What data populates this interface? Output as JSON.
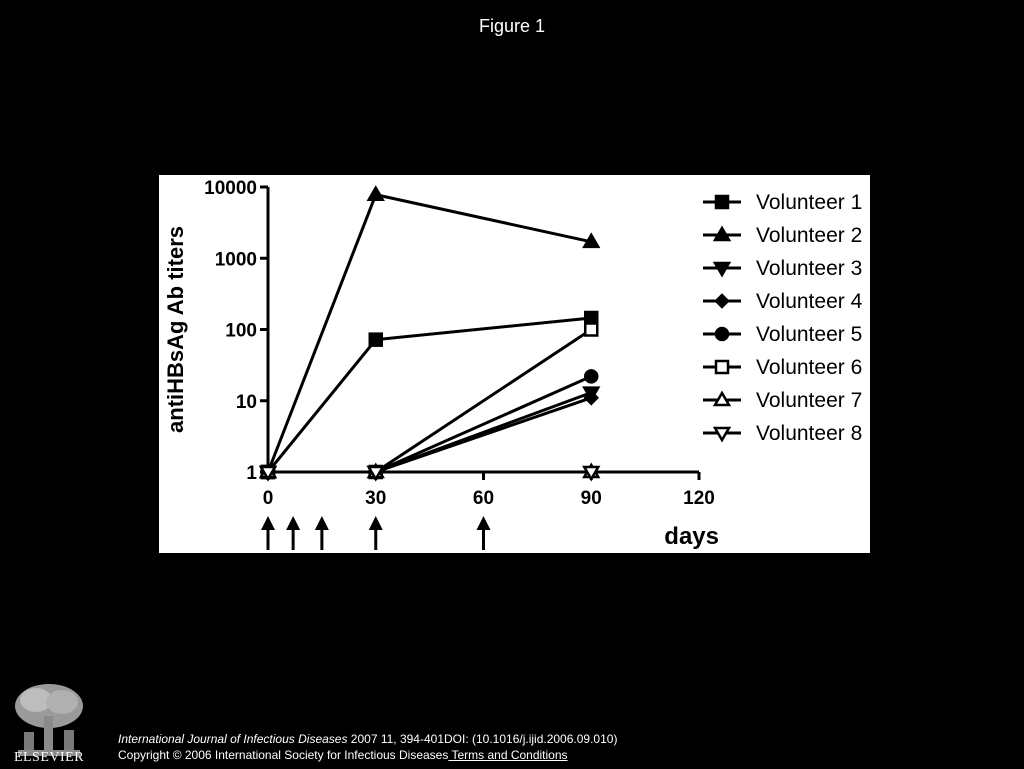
{
  "page": {
    "title": "Figure 1"
  },
  "colors": {
    "background": "#000000",
    "plot_bg": "#ffffff",
    "ink": "#000000"
  },
  "chart_data": {
    "type": "line",
    "title": "",
    "xlabel": "days",
    "ylabel": "antiHBsAg Ab titers",
    "y_scale": "log",
    "xlim": [
      0,
      120
    ],
    "ylim": [
      1,
      10000
    ],
    "x_ticks": [
      "0",
      "30",
      "60",
      "90",
      "120"
    ],
    "y_ticks": [
      "1",
      "10",
      "100",
      "1000",
      "10000"
    ],
    "grid": false,
    "legend_position": "right",
    "vaccination_days": [
      0,
      7,
      15,
      30,
      60
    ],
    "series": [
      {
        "name": "Volunteer 1",
        "marker": "square-filled",
        "x": [
          0,
          30,
          90
        ],
        "y": [
          1,
          72,
          145
        ]
      },
      {
        "name": "Volunteer 2",
        "marker": "triangle-up-filled",
        "x": [
          0,
          30,
          90
        ],
        "y": [
          1,
          7800,
          1700
        ]
      },
      {
        "name": "Volunteer 3",
        "marker": "triangle-down-filled",
        "x": [
          0,
          30,
          90
        ],
        "y": [
          1,
          1,
          13
        ]
      },
      {
        "name": "Volunteer 4",
        "marker": "diamond-filled",
        "x": [
          0,
          30,
          90
        ],
        "y": [
          1,
          1,
          11
        ]
      },
      {
        "name": "Volunteer 5",
        "marker": "circle-filled",
        "x": [
          0,
          30,
          90
        ],
        "y": [
          1,
          1,
          22
        ]
      },
      {
        "name": "Volunteer 6",
        "marker": "square-open",
        "x": [
          0,
          30,
          90
        ],
        "y": [
          1,
          1,
          100
        ]
      },
      {
        "name": "Volunteer 7",
        "marker": "triangle-up-open",
        "x": [
          0,
          30,
          90
        ],
        "y": [
          1,
          1,
          1
        ]
      },
      {
        "name": "Volunteer 8",
        "marker": "triangle-down-open",
        "x": [
          0,
          30,
          90
        ],
        "y": [
          1,
          1,
          1
        ]
      }
    ]
  },
  "footer": {
    "journal": "International Journal of Infectious Diseases",
    "citation": " 2007 11, 394-401DOI: (10.1016/j.ijid.2006.09.010)",
    "copyright": "Copyright © 2006 International Society for Infectious Diseases",
    "terms_link": " Terms and Conditions"
  },
  "logo": {
    "text": "ELSEVIER",
    "icon": "elsevier-tree-icon"
  }
}
